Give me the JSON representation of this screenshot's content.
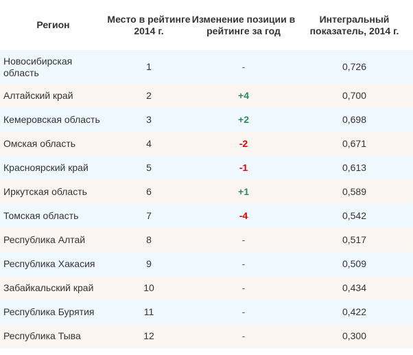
{
  "table": {
    "headers": {
      "region": "Регион",
      "rank": "Место в рейтинге 2014 г.",
      "change": "Изменение позиции в рейтинге за год",
      "value": "Интегральный показатель, 2014 г."
    },
    "rows": [
      {
        "region": "Новосибирская область",
        "rank": "1",
        "change": "-",
        "change_type": "neutral",
        "value": "0,726"
      },
      {
        "region": "Алтайский край",
        "rank": "2",
        "change": "+4",
        "change_type": "pos",
        "value": "0,700"
      },
      {
        "region": "Кемеровская область",
        "rank": "3",
        "change": "+2",
        "change_type": "pos",
        "value": "0,698"
      },
      {
        "region": "Омская область",
        "rank": "4",
        "change": "-2",
        "change_type": "neg",
        "value": "0,671"
      },
      {
        "region": "Красноярский край",
        "rank": "5",
        "change": "-1",
        "change_type": "neg",
        "value": "0,613"
      },
      {
        "region": "Иркутская область",
        "rank": "6",
        "change": "+1",
        "change_type": "pos",
        "value": "0,589"
      },
      {
        "region": "Томская область",
        "rank": "7",
        "change": "-4",
        "change_type": "neg",
        "value": "0,542"
      },
      {
        "region": "Республика Алтай",
        "rank": "8",
        "change": "-",
        "change_type": "neutral",
        "value": "0,517"
      },
      {
        "region": "Республика Хакасия",
        "rank": "9",
        "change": "-",
        "change_type": "neutral",
        "value": "0,509"
      },
      {
        "region": "Забайкальский край",
        "rank": "10",
        "change": "-",
        "change_type": "neutral",
        "value": "0,434"
      },
      {
        "region": "Республика Бурятия",
        "rank": "11",
        "change": "-",
        "change_type": "neutral",
        "value": "0,422"
      },
      {
        "region": "Республика Тыва",
        "rank": "12",
        "change": "-",
        "change_type": "neutral",
        "value": "0,300"
      }
    ]
  },
  "colors": {
    "row_odd": "#eef8fe",
    "row_even": "#fbf5f1",
    "positive": "#2e8b57",
    "negative": "#e60000",
    "text": "#333333"
  }
}
